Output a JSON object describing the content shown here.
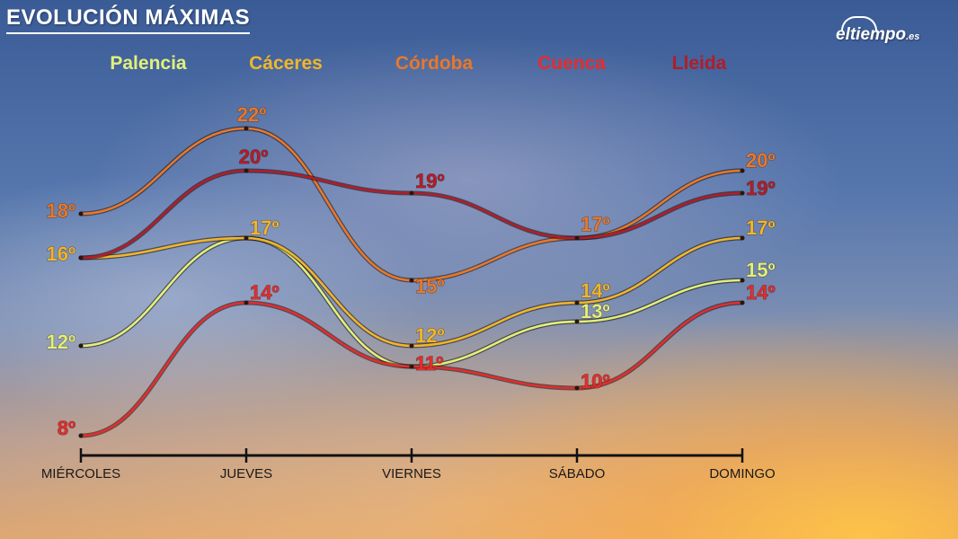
{
  "title": "EVOLUCIÓN MÁXIMAS",
  "brand": {
    "name": "eltiempo",
    "tld": ".es",
    "icon": "cloud-logo-icon"
  },
  "chart_data": {
    "type": "line",
    "title": "EVOLUCIÓN MÁXIMAS",
    "categories": [
      "MIÉRCOLES",
      "JUEVES",
      "VIERNES",
      "SÁBADO",
      "DOMINGO"
    ],
    "legend_position": "top",
    "value_suffix": "º",
    "series": [
      {
        "name": "Palencia",
        "color": "#e2f07a",
        "values": [
          12,
          17,
          11,
          13,
          15
        ]
      },
      {
        "name": "Cáceres",
        "color": "#f0b62a",
        "values": [
          16,
          17,
          12,
          14,
          17
        ]
      },
      {
        "name": "Córdoba",
        "color": "#e8782a",
        "values": [
          18,
          22,
          15,
          17,
          20
        ]
      },
      {
        "name": "Cuenca",
        "color": "#e32d2d",
        "values": [
          8,
          14,
          11,
          10,
          14
        ]
      },
      {
        "name": "Lleida",
        "color": "#b21d27",
        "values": [
          16,
          20,
          19,
          17,
          19
        ]
      }
    ],
    "labels": [
      {
        "text": "18º",
        "color": "#e8782a"
      },
      {
        "text": "16º",
        "color": "#f0b62a"
      },
      {
        "text": "12º",
        "color": "#e2f07a"
      },
      {
        "text": "8º",
        "color": "#e32d2d"
      },
      {
        "text": "22º",
        "color": "#e8782a"
      },
      {
        "text": "20º",
        "color": "#b21d27"
      },
      {
        "text": "17º",
        "color": "#f0b62a"
      },
      {
        "text": "14º",
        "color": "#e32d2d"
      },
      {
        "text": "19º",
        "color": "#b21d27"
      },
      {
        "text": "15º",
        "color": "#e8782a"
      },
      {
        "text": "12º",
        "color": "#f0b62a"
      },
      {
        "text": "11º",
        "color": "#e32d2d"
      },
      {
        "text": "17º",
        "color": "#e8782a"
      },
      {
        "text": "14º",
        "color": "#f0b62a"
      },
      {
        "text": "13º",
        "color": "#e2f07a"
      },
      {
        "text": "10º",
        "color": "#e32d2d"
      },
      {
        "text": "20º",
        "color": "#e8782a"
      },
      {
        "text": "19º",
        "color": "#b21d27"
      },
      {
        "text": "17º",
        "color": "#f0b62a"
      },
      {
        "text": "15º",
        "color": "#e2f07a"
      },
      {
        "text": "14º",
        "color": "#e32d2d"
      }
    ]
  }
}
